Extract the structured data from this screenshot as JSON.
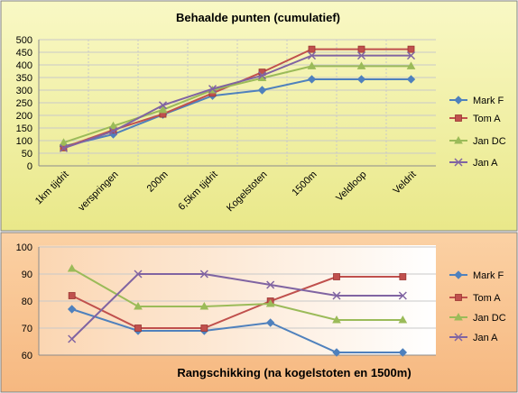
{
  "chart_data": [
    {
      "type": "line",
      "title": "Behaalde punten (cumulatief)",
      "categories": [
        "1km tijdrit",
        "verspringen",
        "200m",
        "6,5km tijdrit",
        "Kogelstoten",
        "1500m",
        "Veldloop",
        "Veldrit"
      ],
      "ylim": [
        0,
        500
      ],
      "yticks": [
        0,
        50,
        100,
        150,
        200,
        250,
        300,
        350,
        400,
        450,
        500
      ],
      "grid": true,
      "legend_position": "right",
      "series": [
        {
          "name": "Mark F",
          "color": "#4f81bd",
          "marker": "diamond",
          "values": [
            77,
            125,
            203,
            278,
            300,
            343,
            343,
            343
          ]
        },
        {
          "name": "Tom A",
          "color": "#c0504d",
          "marker": "square",
          "values": [
            72,
            142,
            205,
            288,
            371,
            462,
            462,
            462
          ]
        },
        {
          "name": "Jan DC",
          "color": "#9bbb59",
          "marker": "triangle",
          "values": [
            92,
            158,
            222,
            300,
            348,
            395,
            395,
            395
          ]
        },
        {
          "name": "Jan A",
          "color": "#8064a2",
          "marker": "x",
          "values": [
            70,
            137,
            240,
            305,
            358,
            437,
            437,
            437
          ]
        }
      ]
    },
    {
      "type": "line",
      "title": "Rangschikking (na kogelstoten en 1500m)",
      "categories": [
        "",
        "",
        "",
        "",
        "",
        ""
      ],
      "ylim": [
        60,
        100
      ],
      "yticks": [
        60,
        70,
        80,
        90,
        100
      ],
      "grid": true,
      "legend_position": "right",
      "series": [
        {
          "name": "Mark F",
          "color": "#4f81bd",
          "marker": "diamond",
          "values": [
            77,
            69,
            69,
            72,
            61,
            61
          ]
        },
        {
          "name": "Tom A",
          "color": "#c0504d",
          "marker": "square",
          "values": [
            82,
            70,
            70,
            80,
            89,
            89
          ]
        },
        {
          "name": "Jan DC",
          "color": "#9bbb59",
          "marker": "triangle",
          "values": [
            92,
            78,
            78,
            79,
            73,
            73
          ]
        },
        {
          "name": "Jan A",
          "color": "#8064a2",
          "marker": "x",
          "values": [
            66,
            90,
            90,
            86,
            82,
            82
          ]
        }
      ]
    }
  ]
}
